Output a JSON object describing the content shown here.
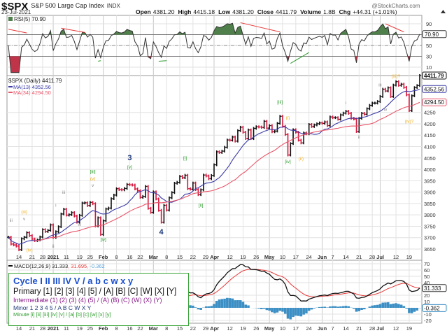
{
  "header": {
    "symbol": "$SPX",
    "name": "S&P 500 Large Cap Index",
    "exchange": "INDX",
    "watermark": "@StockCharts.com",
    "date": "23-Jul-2021",
    "open_label": "Open",
    "open": "4381.20",
    "high_label": "High",
    "high": "4415.18",
    "low_label": "Low",
    "low": "4381.20",
    "close_label": "Close",
    "close": "4411.79",
    "volume_label": "Volume",
    "volume": "1.8B",
    "chg_label": "Chg",
    "chg": "+44.31 (+1.01%)",
    "chg_icon": "triangle-up-icon"
  },
  "colors": {
    "up": "#111111",
    "down": "#d6163c",
    "ma13": "#3a3aa8",
    "ma34": "#e8566a",
    "macd": "#111111",
    "signal": "#e83a3a",
    "hist": "#3c8fc4",
    "rsi_fill_high": "#4f7f4a",
    "rsi_fill_low": "#c0344a",
    "grid": "#e2e2e2"
  },
  "chart_data": {
    "type": "ohlc-bar",
    "title": "$SPX (Daily) 4411.79",
    "price_ticks": [
      3650,
      3700,
      3750,
      3800,
      3850,
      3900,
      3950,
      4000,
      4050,
      4100,
      4150,
      4200,
      4250
    ],
    "price_range": [
      3620,
      4425
    ],
    "grid": true,
    "legend": {
      "ma13": "MA(13) 4352.56",
      "ma34": "MA(34) 4294.50"
    },
    "last_values": {
      "close": "4411.79",
      "ma13": "4352.56",
      "ma34": "4294.50"
    },
    "dates": [
      "2020-12-08",
      "2020-12-09",
      "2020-12-10",
      "2020-12-11",
      "2020-12-14",
      "2020-12-15",
      "2020-12-16",
      "2020-12-17",
      "2020-12-18",
      "2020-12-21",
      "2020-12-22",
      "2020-12-23",
      "2020-12-24",
      "2020-12-28",
      "2020-12-29",
      "2020-12-30",
      "2020-12-31",
      "2021-01-04",
      "2021-01-05",
      "2021-01-06",
      "2021-01-07",
      "2021-01-08",
      "2021-01-11",
      "2021-01-12",
      "2021-01-13",
      "2021-01-14",
      "2021-01-15",
      "2021-01-19",
      "2021-01-20",
      "2021-01-21",
      "2021-01-22",
      "2021-01-25",
      "2021-01-26",
      "2021-01-27",
      "2021-01-28",
      "2021-01-29",
      "2021-02-01",
      "2021-02-02",
      "2021-02-03",
      "2021-02-04",
      "2021-02-05",
      "2021-02-08",
      "2021-02-09",
      "2021-02-10",
      "2021-02-11",
      "2021-02-12",
      "2021-02-16",
      "2021-02-17",
      "2021-02-18",
      "2021-02-19",
      "2021-02-22",
      "2021-02-23",
      "2021-02-24",
      "2021-02-25",
      "2021-02-26",
      "2021-03-01",
      "2021-03-02",
      "2021-03-03",
      "2021-03-04",
      "2021-03-05",
      "2021-03-08",
      "2021-03-09",
      "2021-03-10",
      "2021-03-11",
      "2021-03-12",
      "2021-03-15",
      "2021-03-16",
      "2021-03-17",
      "2021-03-18",
      "2021-03-19",
      "2021-03-22",
      "2021-03-23",
      "2021-03-24",
      "2021-03-25",
      "2021-03-26",
      "2021-03-29",
      "2021-03-30",
      "2021-03-31",
      "2021-04-01",
      "2021-04-05",
      "2021-04-06",
      "2021-04-07",
      "2021-04-08",
      "2021-04-09",
      "2021-04-12",
      "2021-04-13",
      "2021-04-14",
      "2021-04-15",
      "2021-04-16",
      "2021-04-19",
      "2021-04-20",
      "2021-04-21",
      "2021-04-22",
      "2021-04-23",
      "2021-04-26",
      "2021-04-27",
      "2021-04-28",
      "2021-04-29",
      "2021-04-30",
      "2021-05-03",
      "2021-05-04",
      "2021-05-05",
      "2021-05-06",
      "2021-05-07",
      "2021-05-10",
      "2021-05-11",
      "2021-05-12",
      "2021-05-13",
      "2021-05-14",
      "2021-05-17",
      "2021-05-18",
      "2021-05-19",
      "2021-05-20",
      "2021-05-21",
      "2021-05-24",
      "2021-05-25",
      "2021-05-26",
      "2021-05-27",
      "2021-05-28",
      "2021-06-01",
      "2021-06-02",
      "2021-06-03",
      "2021-06-04",
      "2021-06-07",
      "2021-06-08",
      "2021-06-09",
      "2021-06-10",
      "2021-06-11",
      "2021-06-14",
      "2021-06-15",
      "2021-06-16",
      "2021-06-17",
      "2021-06-18",
      "2021-06-21",
      "2021-06-22",
      "2021-06-23",
      "2021-06-24",
      "2021-06-25",
      "2021-06-28",
      "2021-06-29",
      "2021-06-30",
      "2021-07-01",
      "2021-07-02",
      "2021-07-06",
      "2021-07-07",
      "2021-07-08",
      "2021-07-09",
      "2021-07-12",
      "2021-07-13",
      "2021-07-14",
      "2021-07-15",
      "2021-07-16",
      "2021-07-19",
      "2021-07-20",
      "2021-07-21",
      "2021-07-22",
      "2021-07-23"
    ],
    "close": [
      3702,
      3672,
      3668,
      3663,
      3647,
      3695,
      3702,
      3722,
      3709,
      3694,
      3687,
      3690,
      3703,
      3735,
      3727,
      3732,
      3756,
      3701,
      3726,
      3748,
      3804,
      3825,
      3799,
      3801,
      3810,
      3795,
      3768,
      3798,
      3852,
      3853,
      3841,
      3855,
      3849,
      3751,
      3787,
      3714,
      3774,
      3826,
      3830,
      3871,
      3887,
      3915,
      3911,
      3910,
      3916,
      3934,
      3932,
      3931,
      3914,
      3906,
      3877,
      3881,
      3925,
      3829,
      3811,
      3901,
      3870,
      3820,
      3768,
      3842,
      3821,
      3875,
      3898,
      3939,
      3943,
      3969,
      3963,
      3974,
      3915,
      3913,
      3940,
      3911,
      3889,
      3910,
      3975,
      3971,
      3959,
      3973,
      4020,
      4077,
      4074,
      4080,
      4097,
      4129,
      4128,
      4142,
      4124,
      4170,
      4185,
      4163,
      4135,
      4173,
      4135,
      4180,
      4187,
      4186,
      4184,
      4211,
      4181,
      4192,
      4165,
      4168,
      4202,
      4233,
      4189,
      4153,
      4063,
      4113,
      4174,
      4163,
      4128,
      4116,
      4160,
      4156,
      4197,
      4188,
      4195,
      4200,
      4204,
      4202,
      4208,
      4192,
      4230,
      4227,
      4227,
      4220,
      4239,
      4247,
      4255,
      4246,
      4224,
      4221,
      4166,
      4224,
      4246,
      4242,
      4266,
      4281,
      4291,
      4291,
      4298,
      4320,
      4352,
      4344,
      4358,
      4320,
      4370,
      4385,
      4369,
      4374,
      4360,
      4327,
      4258,
      4323,
      4359,
      4368,
      4412
    ],
    "x_labels": [
      {
        "text": "14",
        "date": "2020-12-14"
      },
      {
        "text": "21",
        "date": "2020-12-21"
      },
      {
        "text": "28",
        "date": "2020-12-28"
      },
      {
        "text": "2021",
        "date": "2021-01-04",
        "major": true
      },
      {
        "text": "11",
        "date": "2021-01-11"
      },
      {
        "text": "19",
        "date": "2021-01-19"
      },
      {
        "text": "25",
        "date": "2021-01-25"
      },
      {
        "text": "Feb",
        "date": "2021-02-01",
        "major": true
      },
      {
        "text": "8",
        "date": "2021-02-08"
      },
      {
        "text": "16",
        "date": "2021-02-16"
      },
      {
        "text": "22",
        "date": "2021-02-22"
      },
      {
        "text": "Mar",
        "date": "2021-03-01",
        "major": true
      },
      {
        "text": "8",
        "date": "2021-03-08"
      },
      {
        "text": "15",
        "date": "2021-03-15"
      },
      {
        "text": "22",
        "date": "2021-03-22"
      },
      {
        "text": "29",
        "date": "2021-03-29"
      },
      {
        "text": "Apr",
        "date": "2021-04-01",
        "major": true
      },
      {
        "text": "12",
        "date": "2021-04-12"
      },
      {
        "text": "19",
        "date": "2021-04-19"
      },
      {
        "text": "26",
        "date": "2021-04-26"
      },
      {
        "text": "May",
        "date": "2021-05-03",
        "major": true
      },
      {
        "text": "10",
        "date": "2021-05-10"
      },
      {
        "text": "17",
        "date": "2021-05-17"
      },
      {
        "text": "24",
        "date": "2021-05-24"
      },
      {
        "text": "Jun",
        "date": "2021-06-01",
        "major": true
      },
      {
        "text": "7",
        "date": "2021-06-07"
      },
      {
        "text": "14",
        "date": "2021-06-14"
      },
      {
        "text": "21",
        "date": "2021-06-21"
      },
      {
        "text": "28",
        "date": "2021-06-28"
      },
      {
        "text": "Jul",
        "date": "2021-07-01",
        "major": true
      },
      {
        "text": "12",
        "date": "2021-07-12"
      },
      {
        "text": "19",
        "date": "2021-07-19"
      }
    ],
    "wave_labels": [
      {
        "text": "iii",
        "date": "2020-12-09",
        "price": 3770,
        "color": "#888888"
      },
      {
        "text": "(iii)",
        "date": "2020-12-16",
        "price": 3806,
        "color": "#f0b020"
      },
      {
        "text": "v",
        "date": "2020-12-16",
        "price": 3776,
        "color": "#888888"
      },
      {
        "text": "(iv)",
        "date": "2020-12-18",
        "price": 3640,
        "color": "#f0b020"
      },
      {
        "text": "i",
        "date": "2021-01-05",
        "price": 3836,
        "color": "#888888"
      },
      {
        "text": "ii",
        "date": "2021-01-04",
        "price": 3656,
        "color": "#888888"
      },
      {
        "text": "iii",
        "date": "2021-01-08",
        "price": 3893,
        "color": "#888888"
      },
      {
        "text": "iv",
        "date": "2021-01-19",
        "price": 3752,
        "color": "#888888"
      },
      {
        "text": "[iii]",
        "date": "2021-01-26",
        "price": 3983,
        "color": "#2a9a2a"
      },
      {
        "text": "(v)",
        "date": "2021-01-26",
        "price": 3953,
        "color": "#f0b020"
      },
      {
        "text": "v",
        "date": "2021-01-26",
        "price": 3923,
        "color": "#888888"
      },
      {
        "text": "[iv]",
        "date": "2021-02-01",
        "price": 3686,
        "color": "#2a9a2a"
      },
      {
        "text": "3",
        "date": "2021-02-16",
        "price": 4040,
        "color": "#1f3a7a",
        "big": true
      },
      {
        "text": "[v]",
        "date": "2021-02-16",
        "price": 4004,
        "color": "#2a9a2a"
      },
      {
        "text": "4",
        "date": "2021-03-04",
        "price": 3714,
        "color": "#1f3a7a",
        "big": true
      },
      {
        "text": "[i]",
        "date": "2021-03-17",
        "price": 4043,
        "color": "#2a9a2a"
      },
      {
        "text": "[ii]",
        "date": "2021-03-25",
        "price": 3836,
        "color": "#2a9a2a"
      },
      {
        "text": "[iii]",
        "date": "2021-05-07",
        "price": 4289,
        "color": "#2a9a2a"
      },
      {
        "text": "(i)",
        "date": "2021-05-12",
        "price": 4220,
        "color": "#f0b020"
      },
      {
        "text": "[iv]",
        "date": "2021-05-12",
        "price": 4028,
        "color": "#2a9a2a"
      },
      {
        "text": "(ii)",
        "date": "2021-05-19",
        "price": 4040,
        "color": "#f0b020"
      },
      {
        "text": "i",
        "date": "2021-06-14",
        "price": 4286,
        "color": "#888888"
      },
      {
        "text": "ii",
        "date": "2021-06-21",
        "price": 4136,
        "color": "#888888"
      },
      {
        "text": "iii",
        "date": "2021-07-01",
        "price": 4364,
        "color": "#888888"
      },
      {
        "text": "iv",
        "date": "2021-07-06",
        "price": 4256,
        "color": "#888888"
      },
      {
        "text": "(iii)?",
        "date": "2021-07-12",
        "price": 4403,
        "color": "#f0b020"
      },
      {
        "text": "(iv)?",
        "date": "2021-07-19",
        "price": 4205,
        "color": "#f0b020"
      }
    ]
  },
  "rsi": {
    "label": "RSI(5) 70.90",
    "value": "70.90",
    "value_num": 70.9,
    "ticks": [
      90,
      50,
      30,
      10
    ],
    "overbought": 70,
    "oversold": 30,
    "trendlines": [
      {
        "from": "2020-12-08",
        "to": "2020-12-17",
        "r1": 80,
        "r2": 73,
        "color": "#e83a3a"
      },
      {
        "from": "2021-01-07",
        "to": "2021-01-21",
        "r1": 82,
        "r2": 74,
        "color": "#e83a3a"
      },
      {
        "from": "2021-01-28",
        "to": "2021-01-29",
        "r1": 21,
        "r2": 22,
        "color": "#2a9a2a"
      },
      {
        "from": "2021-03-03",
        "to": "2021-03-08",
        "r1": 21,
        "r2": 22,
        "color": "#2a9a2a"
      },
      {
        "from": "2021-04-16",
        "to": "2021-05-07",
        "r1": 92,
        "r2": 75,
        "color": "#e83a3a"
      },
      {
        "from": "2021-05-13",
        "to": "2021-05-24",
        "r1": 17,
        "r2": 37,
        "color": "#2a9a2a"
      },
      {
        "from": "2021-07-06",
        "to": "2021-07-15",
        "r1": 90,
        "r2": 75,
        "color": "#e83a3a"
      }
    ]
  },
  "macd": {
    "label_name": "MACD(12,26,9) 31.333",
    "label_signal": ", 31.695",
    "label_hist": ", -0.362",
    "value": "31.333",
    "hist_value": "-0.362",
    "ticks": [
      70,
      60,
      50,
      40,
      20,
      10,
      -10,
      -20
    ]
  },
  "legend_box": {
    "cycle": "Cycle I II III IV V / a b c w x y",
    "primary": "Primary [1] [2] [3] [4] [5] / [A] [B] [C] [W] [X] [Y]",
    "intermediate": "Intermediate (1) (2) (3) (4) (5) / (A) (B) (C) (W) (X) (Y)",
    "minor": "Minor 1 2 3 4 5 / A B C W X Y",
    "minute": "Minute [i] [ii] [iii] [iv] [v] / [a] [b] [c] [w] [x] [y]"
  }
}
